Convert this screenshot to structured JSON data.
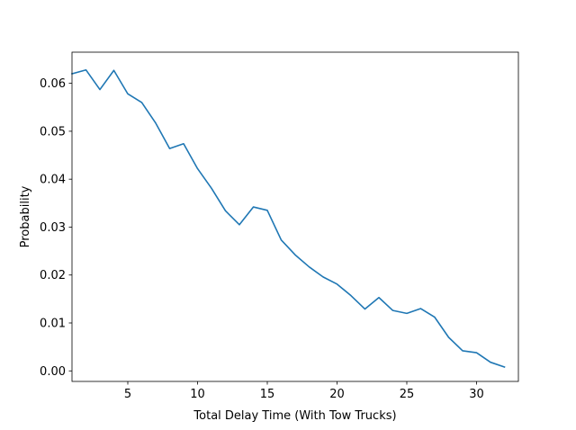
{
  "chart_data": {
    "type": "line",
    "title": "",
    "xlabel": "Total Delay Time (With Tow Trucks)",
    "ylabel": "Probability",
    "xlim": [
      1,
      33
    ],
    "ylim": [
      -0.0022,
      0.0665
    ],
    "xticks": [
      5,
      10,
      15,
      20,
      25,
      30
    ],
    "xtick_labels": [
      "5",
      "10",
      "15",
      "20",
      "25",
      "30"
    ],
    "yticks": [
      0.0,
      0.01,
      0.02,
      0.03,
      0.04,
      0.05,
      0.06
    ],
    "ytick_labels": [
      "0.00",
      "0.01",
      "0.02",
      "0.03",
      "0.04",
      "0.05",
      "0.06"
    ],
    "grid": false,
    "series": [
      {
        "color": "#1f77b4",
        "x": [
          1,
          2,
          3,
          4,
          5,
          6,
          7,
          8,
          9,
          10,
          11,
          12,
          13,
          14,
          15,
          16,
          17,
          18,
          19,
          20,
          21,
          22,
          23,
          24,
          25,
          26,
          27,
          28,
          29,
          30,
          31,
          32
        ],
        "y": [
          0.062,
          0.0628,
          0.0587,
          0.0627,
          0.0578,
          0.056,
          0.0517,
          0.0464,
          0.0474,
          0.0422,
          0.0381,
          0.0334,
          0.0305,
          0.0342,
          0.0335,
          0.0273,
          0.0242,
          0.0217,
          0.0196,
          0.0181,
          0.0157,
          0.0129,
          0.0153,
          0.0126,
          0.012,
          0.013,
          0.0112,
          0.007,
          0.0042,
          0.0038,
          0.0018,
          0.0008
        ]
      }
    ]
  }
}
